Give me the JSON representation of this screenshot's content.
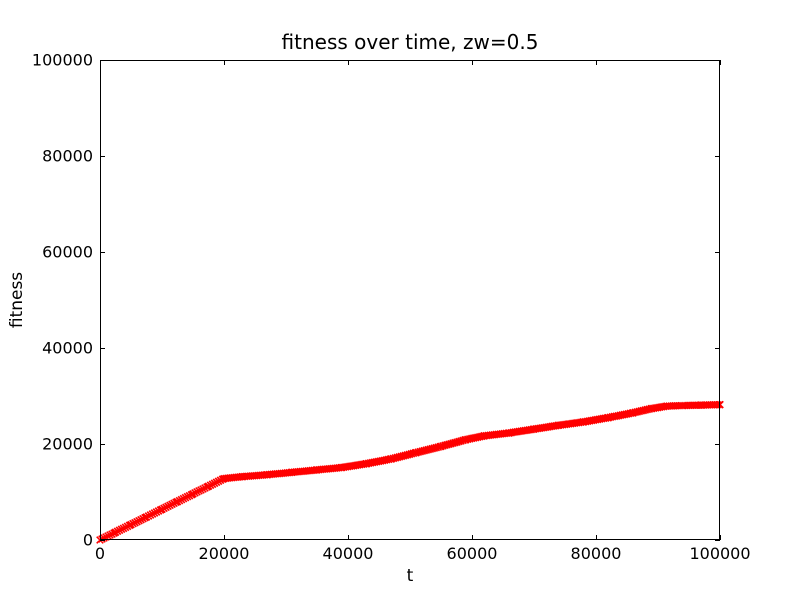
{
  "figure": {
    "background": "#ffffff",
    "axis_color": "#000000",
    "tick_label_color": "#000000"
  },
  "chart_data": {
    "type": "line",
    "title": "fitness over time, zw=0.5",
    "xlabel": "t",
    "ylabel": "fitness",
    "xlim": [
      0,
      100000
    ],
    "ylim": [
      0,
      100000
    ],
    "xticks": [
      0,
      20000,
      40000,
      60000,
      80000,
      100000
    ],
    "yticks": [
      0,
      20000,
      40000,
      60000,
      80000,
      100000
    ],
    "grid": false,
    "legend": "none",
    "tick_direction": "in",
    "series": [
      {
        "name": "fitness",
        "color": "#ff0000",
        "marker": "x",
        "linestyle": "solid",
        "points": [
          [
            0,
            0
          ],
          [
            2500,
            1600
          ],
          [
            5000,
            3200
          ],
          [
            7500,
            4800
          ],
          [
            10000,
            6400
          ],
          [
            12500,
            8000
          ],
          [
            15000,
            9600
          ],
          [
            17500,
            11200
          ],
          [
            20000,
            12800
          ],
          [
            23000,
            13200
          ],
          [
            27000,
            13600
          ],
          [
            31000,
            14100
          ],
          [
            35000,
            14600
          ],
          [
            39000,
            15100
          ],
          [
            43000,
            15900
          ],
          [
            47000,
            16900
          ],
          [
            51000,
            18200
          ],
          [
            55000,
            19500
          ],
          [
            59000,
            20900
          ],
          [
            62000,
            21700
          ],
          [
            66000,
            22300
          ],
          [
            70000,
            23100
          ],
          [
            74000,
            23900
          ],
          [
            78000,
            24600
          ],
          [
            82000,
            25500
          ],
          [
            86000,
            26500
          ],
          [
            89000,
            27400
          ],
          [
            91500,
            27900
          ],
          [
            94000,
            28000
          ],
          [
            97000,
            28100
          ],
          [
            100000,
            28200
          ]
        ]
      }
    ]
  }
}
